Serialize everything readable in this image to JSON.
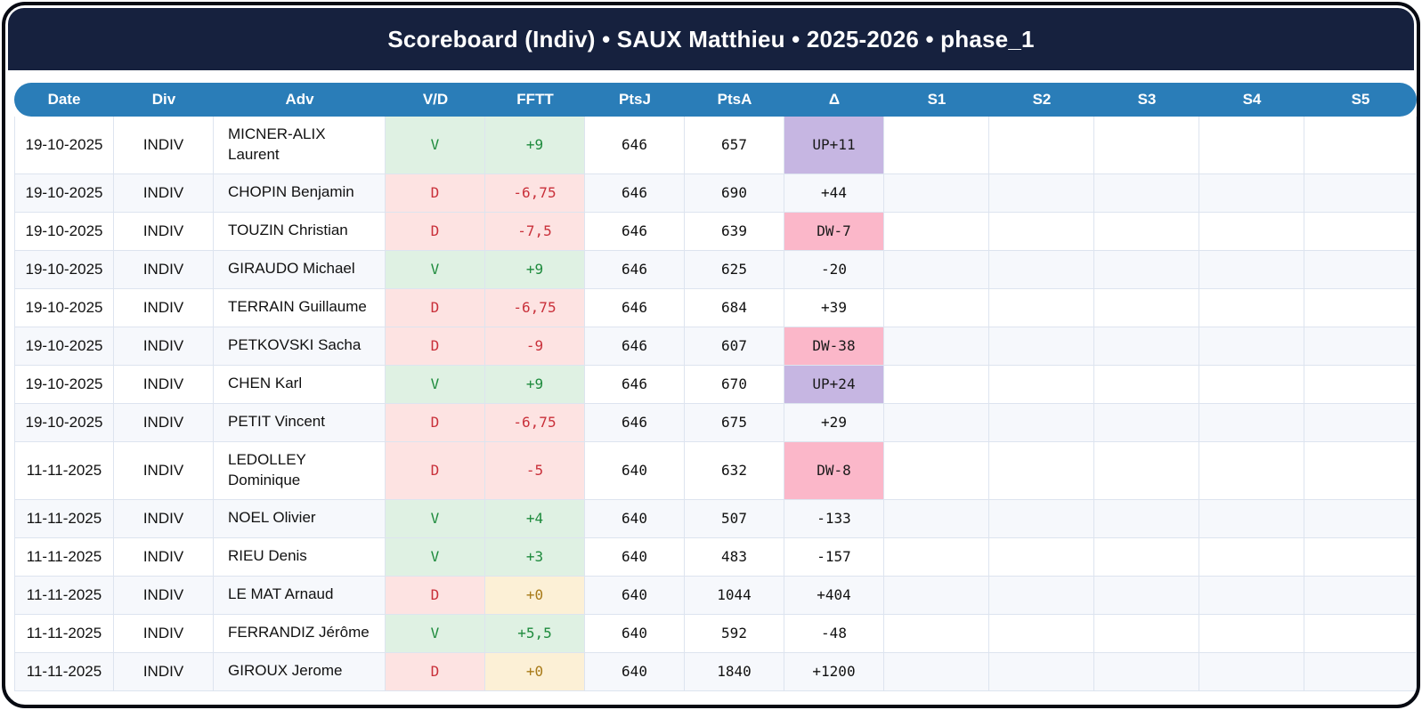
{
  "title": "Scoreboard (Indiv) • SAUX Matthieu • 2025-2026 • phase_1",
  "colors": {
    "frame_border": "#070a12",
    "title_bar_bg": "#16213e",
    "title_text": "#ffffff",
    "header_bg": "#2a7db8",
    "header_text": "#ffffff",
    "row_stripe_bg": "#f6f8fc",
    "cell_border": "#dde4ef",
    "win_bg": "#dff1e3",
    "win_text": "#1e8b3d",
    "loss_bg": "#fde3e2",
    "loss_text": "#c9303a",
    "zero_bg": "#fcf0d6",
    "zero_text": "#a87a18",
    "promotion_bg": "#c6b6e2",
    "demotion_bg": "#fbb7c9"
  },
  "table": {
    "columns": [
      "Date",
      "Div",
      "Adv",
      "V/D",
      "FFTT",
      "PtsJ",
      "PtsA",
      "Δ",
      "S1",
      "S2",
      "S3",
      "S4",
      "S5"
    ],
    "rows": [
      [
        "19-10-2025",
        "INDIV",
        "MICNER-ALIX\nLaurent",
        "V",
        "+9",
        "646",
        "657",
        "UP+11",
        "",
        "",
        "",
        "",
        ""
      ],
      [
        "19-10-2025",
        "INDIV",
        "CHOPIN Benjamin",
        "D",
        "-6,75",
        "646",
        "690",
        "+44",
        "",
        "",
        "",
        "",
        ""
      ],
      [
        "19-10-2025",
        "INDIV",
        "TOUZIN Christian",
        "D",
        "-7,5",
        "646",
        "639",
        "DW-7",
        "",
        "",
        "",
        "",
        ""
      ],
      [
        "19-10-2025",
        "INDIV",
        "GIRAUDO Michael",
        "V",
        "+9",
        "646",
        "625",
        "-20",
        "",
        "",
        "",
        "",
        ""
      ],
      [
        "19-10-2025",
        "INDIV",
        "TERRAIN Guillaume",
        "D",
        "-6,75",
        "646",
        "684",
        "+39",
        "",
        "",
        "",
        "",
        ""
      ],
      [
        "19-10-2025",
        "INDIV",
        "PETKOVSKI Sacha",
        "D",
        "-9",
        "646",
        "607",
        "DW-38",
        "",
        "",
        "",
        "",
        ""
      ],
      [
        "19-10-2025",
        "INDIV",
        "CHEN Karl",
        "V",
        "+9",
        "646",
        "670",
        "UP+24",
        "",
        "",
        "",
        "",
        ""
      ],
      [
        "19-10-2025",
        "INDIV",
        "PETIT Vincent",
        "D",
        "-6,75",
        "646",
        "675",
        "+29",
        "",
        "",
        "",
        "",
        ""
      ],
      [
        "11-11-2025",
        "INDIV",
        "LEDOLLEY\nDominique",
        "D",
        "-5",
        "640",
        "632",
        "DW-8",
        "",
        "",
        "",
        "",
        ""
      ],
      [
        "11-11-2025",
        "INDIV",
        "NOEL Olivier",
        "V",
        "+4",
        "640",
        "507",
        "-133",
        "",
        "",
        "",
        "",
        ""
      ],
      [
        "11-11-2025",
        "INDIV",
        "RIEU Denis",
        "V",
        "+3",
        "640",
        "483",
        "-157",
        "",
        "",
        "",
        "",
        ""
      ],
      [
        "11-11-2025",
        "INDIV",
        "LE MAT Arnaud",
        "D",
        "+0",
        "640",
        "1044",
        "+404",
        "",
        "",
        "",
        "",
        ""
      ],
      [
        "11-11-2025",
        "INDIV",
        "FERRANDIZ Jérôme",
        "V",
        "+5,5",
        "640",
        "592",
        "-48",
        "",
        "",
        "",
        "",
        ""
      ],
      [
        "11-11-2025",
        "INDIV",
        "GIROUX Jerome",
        "D",
        "+0",
        "640",
        "1840",
        "+1200",
        "",
        "",
        "",
        "",
        ""
      ]
    ]
  }
}
